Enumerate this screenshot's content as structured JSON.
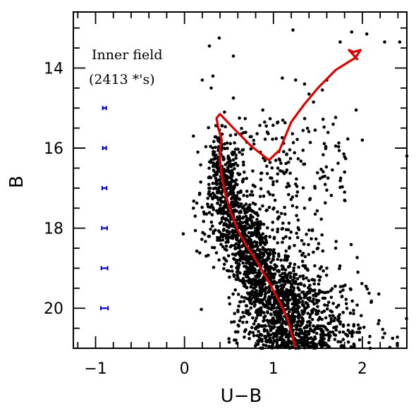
{
  "chart_data": {
    "type": "scatter",
    "xlabel": "U−B",
    "ylabel": "B",
    "xlim": [
      -1.25,
      2.5
    ],
    "ylim": [
      21,
      12.6
    ],
    "y_inverted": true,
    "x_ticks": [
      -1,
      0,
      1,
      2
    ],
    "x_tick_labels": [
      "−1",
      "0",
      "1",
      "2"
    ],
    "y_ticks": [
      14,
      16,
      18,
      20
    ],
    "y_tick_labels": [
      "14",
      "16",
      "18",
      "20"
    ],
    "annotation_lines": [
      "Inner field",
      "(2413 *'s)"
    ],
    "colors": {
      "stars": "#000000",
      "isochrone": "#dd0000",
      "error_bars": "#0000cc"
    },
    "error_bars": {
      "x": -0.9,
      "points": [
        {
          "b": 15,
          "xerr": 0.02,
          "yerr": 0.02
        },
        {
          "b": 16,
          "xerr": 0.02,
          "yerr": 0.02
        },
        {
          "b": 17,
          "xerr": 0.025,
          "yerr": 0.02
        },
        {
          "b": 18,
          "xerr": 0.03,
          "yerr": 0.02
        },
        {
          "b": 19,
          "xerr": 0.035,
          "yerr": 0.02
        },
        {
          "b": 20,
          "xerr": 0.04,
          "yerr": 0.02
        }
      ]
    },
    "isochrone": [
      [
        1.25,
        21.0
      ],
      [
        1.2,
        20.6
      ],
      [
        1.15,
        20.2
      ],
      [
        1.07,
        19.85
      ],
      [
        0.95,
        19.35
      ],
      [
        0.82,
        18.85
      ],
      [
        0.7,
        18.45
      ],
      [
        0.6,
        18.05
      ],
      [
        0.52,
        17.6
      ],
      [
        0.46,
        17.15
      ],
      [
        0.42,
        16.7
      ],
      [
        0.4,
        16.3
      ],
      [
        0.4,
        16.0
      ],
      [
        0.42,
        15.8
      ],
      [
        0.38,
        15.5
      ],
      [
        0.36,
        15.25
      ],
      [
        0.4,
        15.15
      ],
      [
        0.55,
        15.5
      ],
      [
        0.75,
        15.95
      ],
      [
        0.95,
        16.3
      ],
      [
        1.07,
        16.05
      ],
      [
        1.2,
        15.35
      ],
      [
        1.35,
        14.9
      ],
      [
        1.5,
        14.5
      ],
      [
        1.7,
        14.05
      ],
      [
        1.88,
        13.8
      ],
      [
        1.92,
        13.75
      ],
      [
        1.98,
        13.55
      ],
      [
        1.9,
        13.6
      ],
      [
        1.85,
        13.55
      ],
      [
        1.95,
        13.8
      ]
    ],
    "stars": {
      "total": 2413,
      "bright": [
        [
          1.22,
          13.05
        ],
        [
          1.88,
          13.1
        ],
        [
          2.05,
          13.15
        ],
        [
          2.25,
          13.35
        ],
        [
          2.42,
          13.35
        ],
        [
          1.75,
          13.35
        ],
        [
          0.28,
          13.45
        ],
        [
          0.39,
          13.25
        ],
        [
          0.55,
          13.7
        ],
        [
          1.1,
          14.25
        ],
        [
          1.25,
          14.3
        ],
        [
          1.35,
          14.4
        ],
        [
          1.4,
          14.65
        ],
        [
          1.45,
          14.85
        ],
        [
          1.55,
          14.55
        ],
        [
          1.6,
          14.3
        ],
        [
          0.2,
          14.3
        ],
        [
          0.32,
          14.2
        ],
        [
          0.3,
          14.5
        ],
        [
          0.55,
          14.75
        ],
        [
          0.45,
          15.1
        ],
        [
          0.88,
          15.05
        ],
        [
          1.93,
          15.05
        ],
        [
          1.05,
          15.35
        ],
        [
          0.93,
          15.6
        ],
        [
          0.7,
          15.85
        ],
        [
          1.7,
          15.95
        ],
        [
          1.8,
          16.6
        ],
        [
          2.0,
          15.8
        ],
        [
          2.5,
          16.2
        ],
        [
          0.1,
          15.7
        ],
        [
          0.15,
          16.1
        ],
        [
          1.15,
          16.15
        ],
        [
          1.05,
          16.5
        ],
        [
          1.6,
          17.05
        ],
        [
          1.8,
          17.1
        ],
        [
          1.35,
          17.5
        ],
        [
          1.5,
          18.5
        ],
        [
          1.6,
          19.0
        ],
        [
          1.95,
          19.1
        ],
        [
          2.1,
          19.85
        ],
        [
          0.12,
          17.7
        ],
        [
          0.1,
          17.5
        ],
        [
          0.92,
          15.45
        ],
        [
          0.65,
          16.05
        ],
        [
          0.98,
          16.75
        ],
        [
          1.25,
          16.9
        ],
        [
          1.4,
          18.05
        ],
        [
          1.7,
          18.5
        ],
        [
          0.78,
          15.9
        ]
      ]
    }
  }
}
